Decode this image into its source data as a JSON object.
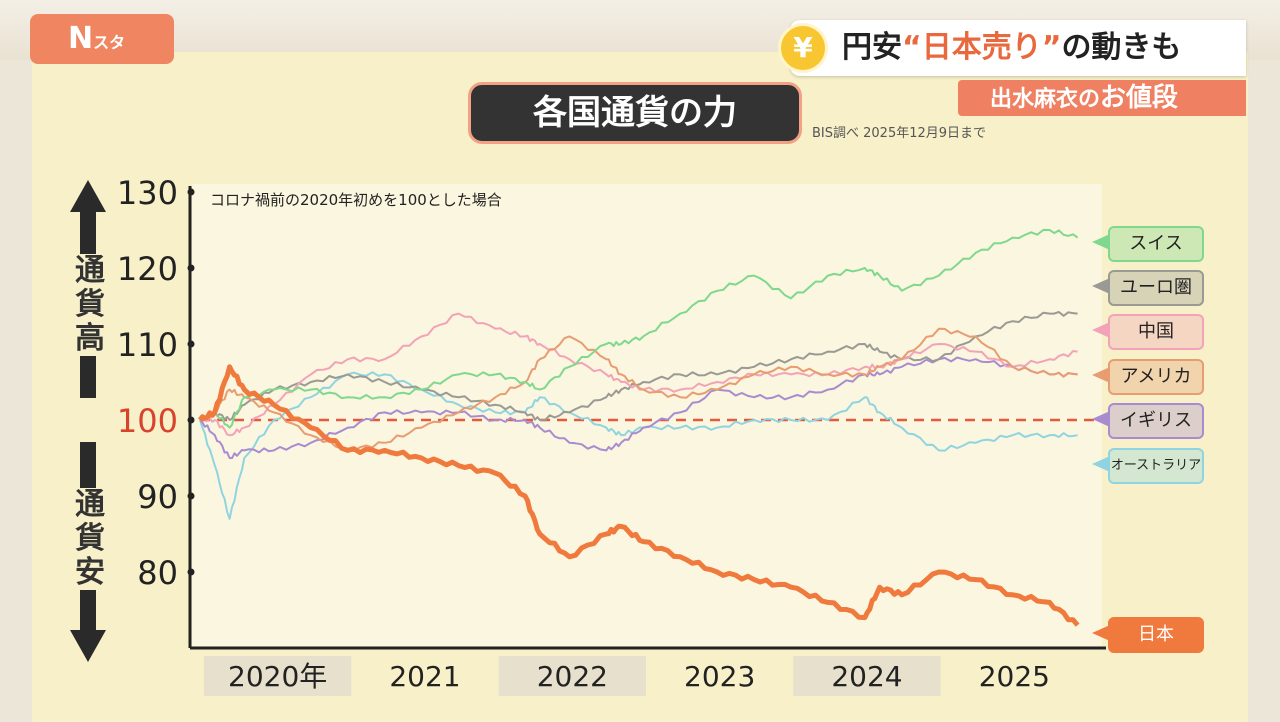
{
  "program": {
    "logo_main": "N",
    "logo_sub": "スタ"
  },
  "headline": {
    "yen_symbol": "¥",
    "prefix": "円安",
    "highlight": "“日本売り”",
    "suffix": "の動きも"
  },
  "subtitle": {
    "prefix": "出水麻衣の",
    "emphasis": "お値段"
  },
  "colors": {
    "japan": "#f07a3e",
    "swiss": "#7fd88d",
    "euro": "#9a9a94",
    "china": "#f2a3b7",
    "usa": "#e89c72",
    "uk": "#a98bd0",
    "australia": "#8fd4e0",
    "baseline": "#e35b3e"
  },
  "chart_data": {
    "type": "line",
    "title": "各国通貨の力",
    "source": "BIS調べ 2025年12月9日まで",
    "note": "コロナ禍前の2020年初めを100とした場合",
    "ylabel_top": "通貨高",
    "ylabel_bottom": "通貨安",
    "ylim": [
      72,
      130
    ],
    "yticks": [
      130,
      120,
      110,
      100,
      90,
      80
    ],
    "baseline": 100,
    "x_categories": [
      "2020年",
      "2021",
      "2022",
      "2023",
      "2024",
      "2025"
    ],
    "xlim": [
      2020.0,
      2026.0
    ],
    "x": [
      2020.0,
      2020.1,
      2020.2,
      2020.3,
      2020.5,
      2020.75,
      2021.0,
      2021.25,
      2021.5,
      2021.75,
      2022.0,
      2022.2,
      2022.3,
      2022.5,
      2022.75,
      2022.85,
      2023.0,
      2023.25,
      2023.5,
      2023.75,
      2024.0,
      2024.25,
      2024.5,
      2024.6,
      2024.75,
      2025.0,
      2025.25,
      2025.5,
      2025.75,
      2025.94
    ],
    "series": [
      {
        "name": "スイス",
        "values": [
          100,
          101,
          99,
          103,
          104,
          104,
          103,
          103,
          104,
          106,
          106,
          105,
          104,
          107,
          110,
          110,
          111,
          114,
          117,
          119,
          116,
          119,
          120,
          119,
          117,
          119,
          122,
          124,
          125,
          124
        ]
      },
      {
        "name": "ユーロ圏",
        "values": [
          100,
          101,
          100,
          102,
          104,
          105,
          106,
          105,
          104,
          103,
          102,
          101,
          100,
          101,
          103,
          104,
          105,
          106,
          106,
          107,
          108,
          109,
          110,
          109,
          108,
          108,
          111,
          113,
          114,
          114
        ]
      },
      {
        "name": "中国",
        "values": [
          100,
          100,
          98,
          99,
          102,
          106,
          108,
          108,
          111,
          114,
          112,
          111,
          110,
          108,
          106,
          105,
          104,
          104,
          105,
          106,
          106,
          106,
          107,
          107,
          108,
          110,
          109,
          107,
          108,
          109
        ]
      },
      {
        "name": "アメリカ",
        "values": [
          100,
          101,
          104,
          103,
          101,
          98,
          96,
          97,
          99,
          101,
          103,
          105,
          108,
          111,
          108,
          106,
          104,
          103,
          104,
          106,
          107,
          106,
          106,
          107,
          108,
          112,
          111,
          107,
          106,
          106
        ]
      },
      {
        "name": "イギリス",
        "values": [
          100,
          98,
          95,
          96,
          96,
          97,
          99,
          101,
          101,
          101,
          100,
          100,
          99,
          97,
          96,
          97,
          99,
          101,
          104,
          103,
          103,
          104,
          106,
          106,
          107,
          108,
          108,
          107,
          106,
          106
        ]
      },
      {
        "name": "オーストラリア",
        "values": [
          100,
          94,
          87,
          95,
          100,
          103,
          106,
          106,
          104,
          102,
          101,
          101,
          103,
          101,
          99,
          98,
          99,
          99,
          99,
          100,
          100,
          100,
          103,
          101,
          99,
          96,
          97,
          98,
          98,
          98
        ]
      },
      {
        "name": "日本",
        "values": [
          100,
          101,
          107,
          104,
          102,
          99,
          96,
          96,
          95,
          94,
          93,
          90,
          85,
          82,
          85,
          86,
          84,
          82,
          80,
          79,
          78,
          76,
          74,
          78,
          77,
          80,
          79,
          77,
          76,
          73
        ]
      }
    ]
  }
}
